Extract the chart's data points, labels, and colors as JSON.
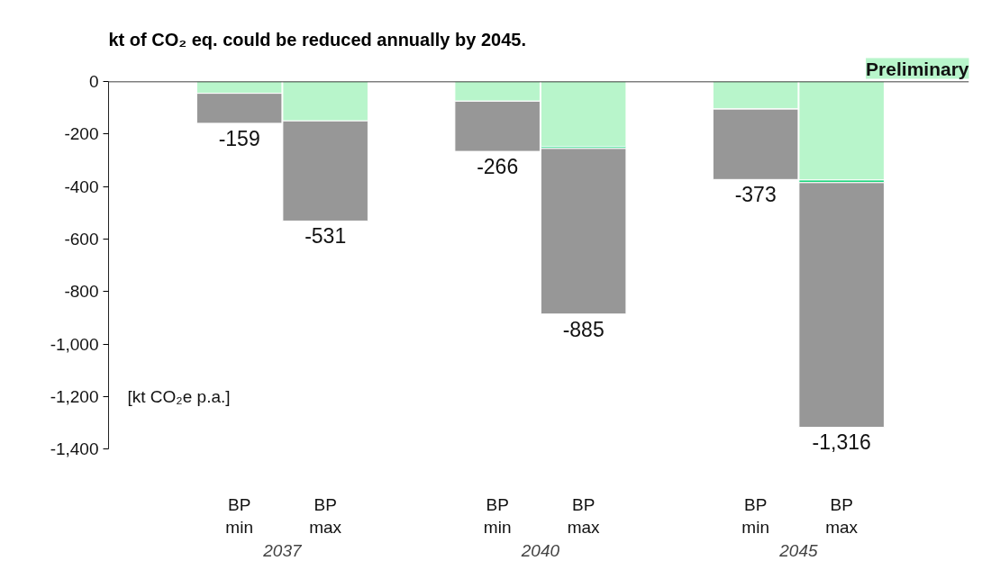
{
  "chart_data": {
    "type": "bar",
    "title": "kt of CO₂ eq. could be reduced annually by 2045.",
    "ylabel": "[kt CO₂e p.a.]",
    "annotations": [
      "Preliminary",
      "2037",
      "2040",
      "2045"
    ],
    "categories": [
      "BP min",
      "BP max",
      "BP min",
      "BP max",
      "BP min",
      "BP max"
    ],
    "stacked": true,
    "series": [
      {
        "color": "#b8f5cb",
        "values": [
          -45,
          -150,
          -75,
          -248,
          -105,
          -375
        ]
      },
      {
        "color": "#19d47a",
        "values": [
          0,
          null,
          0,
          -7,
          0,
          -10
        ]
      },
      {
        "color": "#979797",
        "values": [
          -114,
          -381,
          -191,
          -630,
          -268,
          -931
        ]
      }
    ],
    "totals": [
      "-159",
      "-531",
      "-266",
      "-885",
      "-373",
      "-1,316"
    ],
    "ylim": [
      -1400,
      0
    ],
    "yticks": [
      {
        "value": 0,
        "label": "0"
      },
      {
        "value": -200,
        "label": "-200"
      },
      {
        "value": -400,
        "label": "-400"
      },
      {
        "value": -600,
        "label": "-600"
      },
      {
        "value": -800,
        "label": "-800"
      },
      {
        "value": -1000,
        "label": "-1,000"
      },
      {
        "value": -1200,
        "label": "-1,200"
      },
      {
        "value": -1400,
        "label": "-1,400"
      }
    ],
    "grid": false
  }
}
